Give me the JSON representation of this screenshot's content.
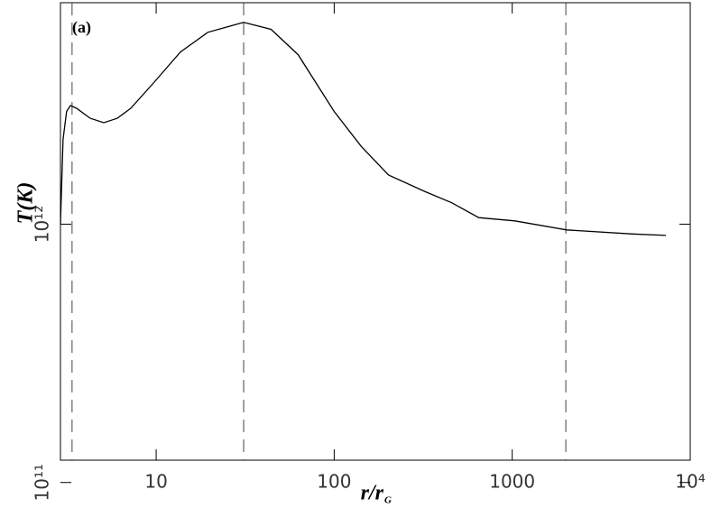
{
  "chart_data": {
    "type": "line",
    "annotation": "(a)",
    "xlabel": "r/r",
    "xlabel_sub": "G",
    "ylabel": "T(K)",
    "xlog": true,
    "ylog": true,
    "xlim": [
      2.9,
      10000
    ],
    "ylim": [
      122000000000,
      7200000000000
    ],
    "xticks": [
      10,
      100,
      1000,
      {
        "value": 10000,
        "label": "10⁴"
      }
    ],
    "yticks": [
      {
        "value": 100000000000,
        "label": "10¹¹"
      },
      {
        "value": 1000000000000,
        "label": "10¹²"
      }
    ],
    "vlines": [
      3.37,
      31,
      2000
    ],
    "series": [
      {
        "color": "#000000",
        "x": [
          2.9,
          3.0,
          3.14,
          3.3,
          3.57,
          4.26,
          5.08,
          6.05,
          7.2,
          9.66,
          13.7,
          19.5,
          31,
          44.2,
          62.7,
          100,
          142,
          202,
          322,
          457,
          649,
          1035,
          2018,
          4732,
          7300
        ],
        "values": [
          1000000000000,
          2130000000000,
          2730000000000,
          2880000000000,
          2810000000000,
          2570000000000,
          2470000000000,
          2570000000000,
          2810000000000,
          3520000000000,
          4640000000000,
          5530000000000,
          6040000000000,
          5680000000000,
          4530000000000,
          2730000000000,
          2000000000000,
          1550000000000,
          1340000000000,
          1210000000000,
          1060000000000,
          1030000000000,
          950000000000,
          916000000000,
          905000000000
        ]
      }
    ]
  }
}
